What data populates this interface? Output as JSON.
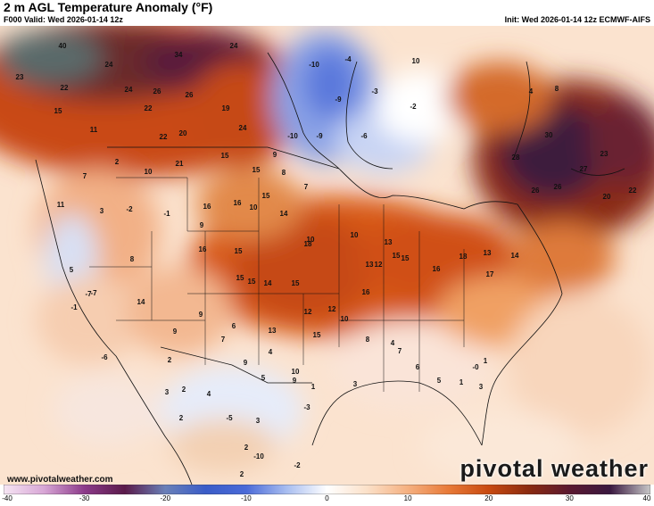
{
  "header": {
    "title": "2 m AGL Temperature Anomaly (°F)",
    "valid": "F000 Valid: Wed 2026-01-14 12z",
    "init": "Init: Wed 2026-01-14 12z ECMWF-AIFS"
  },
  "footer": {
    "website": "www.pivotalweather.com",
    "brand": "pivotal weather"
  },
  "colorbar": {
    "ticks": [
      "-40",
      "-30",
      "-20",
      "-10",
      "0",
      "10",
      "20",
      "30",
      "40"
    ],
    "range": [
      -40,
      40
    ],
    "stops": [
      {
        "v": -40,
        "c": "#f6e6f4"
      },
      {
        "v": -35,
        "c": "#d8a6d6"
      },
      {
        "v": -30,
        "c": "#8c3a8a"
      },
      {
        "v": -25,
        "c": "#5a1a4a"
      },
      {
        "v": -20,
        "c": "#6a80b8"
      },
      {
        "v": -15,
        "c": "#3a5cc8"
      },
      {
        "v": -10,
        "c": "#4a6ad8"
      },
      {
        "v": -5,
        "c": "#a8bdf0"
      },
      {
        "v": 0,
        "c": "#ffffff"
      },
      {
        "v": 5,
        "c": "#fbe0c8"
      },
      {
        "v": 10,
        "c": "#f5b080"
      },
      {
        "v": 15,
        "c": "#e87a38"
      },
      {
        "v": 20,
        "c": "#c84a10"
      },
      {
        "v": 25,
        "c": "#8a2a10"
      },
      {
        "v": 30,
        "c": "#5a1830"
      },
      {
        "v": 35,
        "c": "#3a1840"
      },
      {
        "v": 40,
        "c": "#c8c8c8"
      }
    ]
  },
  "map_values": [
    {
      "t": "40"
    },
    {
      "t": "34"
    },
    {
      "t": "24"
    },
    {
      "t": "23"
    },
    {
      "t": "22"
    },
    {
      "t": "15"
    },
    {
      "t": "24"
    },
    {
      "t": "24"
    },
    {
      "t": "26"
    },
    {
      "t": "26"
    },
    {
      "t": "22"
    },
    {
      "t": "19"
    },
    {
      "t": "20"
    },
    {
      "t": "22"
    },
    {
      "t": "11"
    },
    {
      "t": "24"
    },
    {
      "t": "-10"
    },
    {
      "t": "-4"
    },
    {
      "t": "-3"
    },
    {
      "t": "-9"
    },
    {
      "t": "-10"
    },
    {
      "t": "-9"
    },
    {
      "t": "-6"
    },
    {
      "t": "-2"
    },
    {
      "t": "10"
    },
    {
      "t": "4"
    },
    {
      "t": "8"
    },
    {
      "t": "30"
    },
    {
      "t": "28"
    },
    {
      "t": "27"
    },
    {
      "t": "23"
    },
    {
      "t": "26"
    },
    {
      "t": "26"
    },
    {
      "t": "20"
    },
    {
      "t": "22"
    },
    {
      "t": "7"
    },
    {
      "t": "2"
    },
    {
      "t": "10"
    },
    {
      "t": "21"
    },
    {
      "t": "15"
    },
    {
      "t": "15"
    },
    {
      "t": "9"
    },
    {
      "t": "8"
    },
    {
      "t": "7"
    },
    {
      "t": "11"
    },
    {
      "t": "3"
    },
    {
      "t": "-2"
    },
    {
      "t": "-1"
    },
    {
      "t": "16"
    },
    {
      "t": "16"
    },
    {
      "t": "15"
    },
    {
      "t": "10"
    },
    {
      "t": "14"
    },
    {
      "t": "18"
    },
    {
      "t": "10"
    },
    {
      "t": "10"
    },
    {
      "t": "13"
    },
    {
      "t": "15"
    },
    {
      "t": "15"
    },
    {
      "t": "12"
    },
    {
      "t": "16"
    },
    {
      "t": "18"
    },
    {
      "t": "13"
    },
    {
      "t": "17"
    },
    {
      "t": "14"
    },
    {
      "t": "-7"
    },
    {
      "t": "5"
    },
    {
      "t": "8"
    },
    {
      "t": "9"
    },
    {
      "t": "16"
    },
    {
      "t": "15"
    },
    {
      "t": "15"
    },
    {
      "t": "15"
    },
    {
      "t": "14"
    },
    {
      "t": "15"
    },
    {
      "t": "13"
    },
    {
      "t": "16"
    },
    {
      "t": "12"
    },
    {
      "t": "10"
    },
    {
      "t": "-1"
    },
    {
      "t": "-7"
    },
    {
      "t": "14"
    },
    {
      "t": "9"
    },
    {
      "t": "6"
    },
    {
      "t": "13"
    },
    {
      "t": "15"
    },
    {
      "t": "12"
    },
    {
      "t": "8"
    },
    {
      "t": "4"
    },
    {
      "t": "-6"
    },
    {
      "t": "9"
    },
    {
      "t": "2"
    },
    {
      "t": "7"
    },
    {
      "t": "9"
    },
    {
      "t": "4"
    },
    {
      "t": "10"
    },
    {
      "t": "5"
    },
    {
      "t": "9"
    },
    {
      "t": "7"
    },
    {
      "t": "6"
    },
    {
      "t": "5"
    },
    {
      "t": "1"
    },
    {
      "t": "-0"
    },
    {
      "t": "3"
    },
    {
      "t": "1"
    },
    {
      "t": "3"
    },
    {
      "t": "2"
    },
    {
      "t": "4"
    },
    {
      "t": "-5"
    },
    {
      "t": "-3"
    },
    {
      "t": "1"
    },
    {
      "t": "3"
    },
    {
      "t": "2"
    },
    {
      "t": "3"
    },
    {
      "t": "-10"
    },
    {
      "t": "-2"
    },
    {
      "t": "2"
    },
    {
      "t": "2"
    }
  ]
}
